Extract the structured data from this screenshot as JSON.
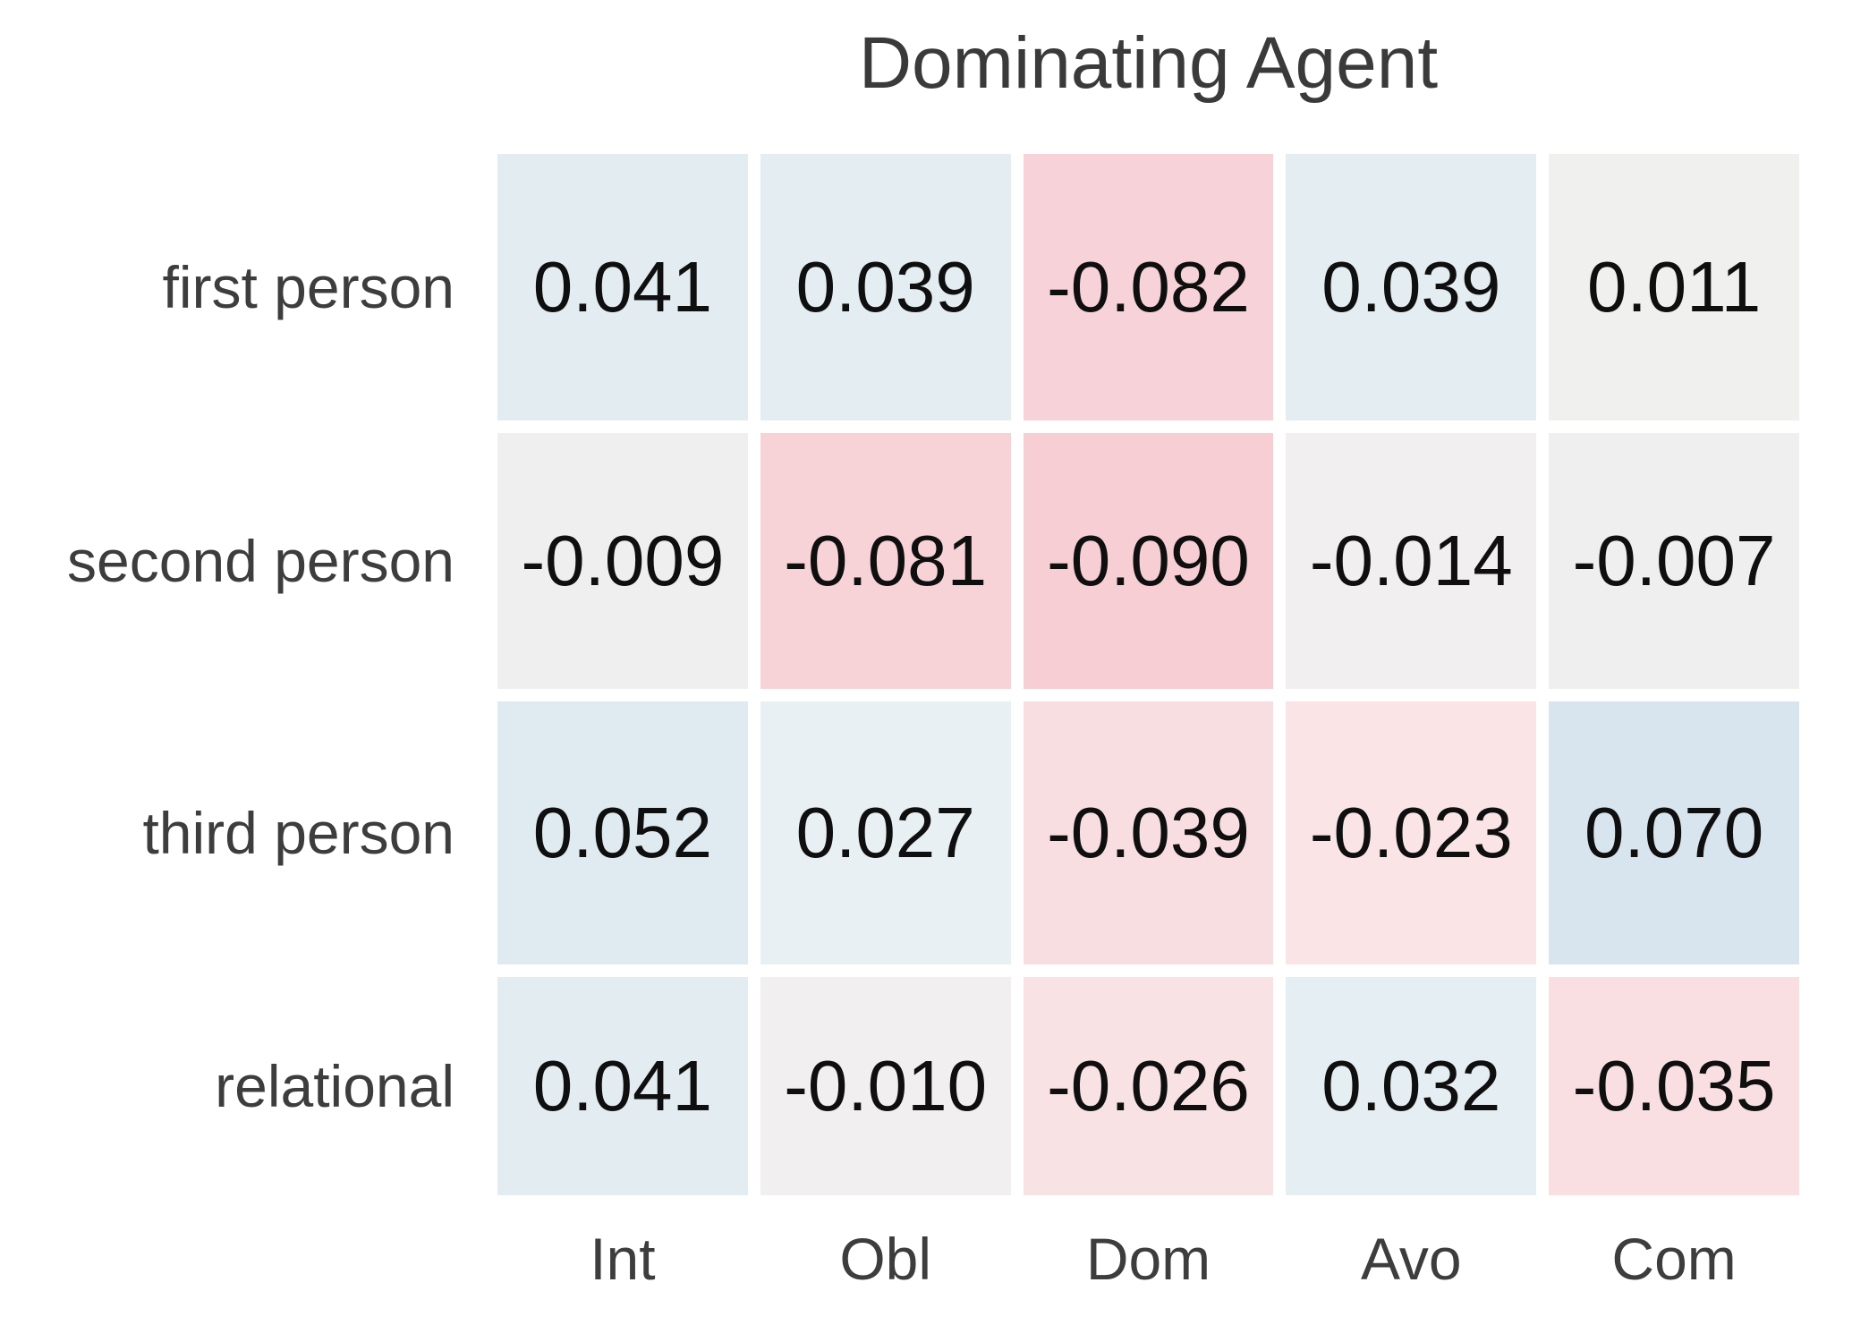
{
  "title": "Dominating Agent",
  "chart_data": {
    "type": "heatmap",
    "title": "Dominating Agent",
    "rows": [
      "first person",
      "second person",
      "third person",
      "relational"
    ],
    "columns": [
      "Int",
      "Obl",
      "Dom",
      "Avo",
      "Com"
    ],
    "values": [
      [
        0.041,
        0.039,
        -0.082,
        0.039,
        0.011
      ],
      [
        -0.009,
        -0.081,
        -0.09,
        -0.014,
        -0.007
      ],
      [
        0.052,
        0.027,
        -0.039,
        -0.023,
        0.07
      ],
      [
        0.041,
        -0.01,
        -0.026,
        0.032,
        -0.035
      ]
    ],
    "value_decimals": 3,
    "cell_colors": [
      [
        "#e2ecf1",
        "#e4edf2",
        "#f7d2d8",
        "#e4edf2",
        "#f0f0ef"
      ],
      [
        "#f0efef",
        "#f7d2d7",
        "#f6ced4",
        "#f1efef",
        "#f0efef"
      ],
      [
        "#dfebf1",
        "#e8f0f4",
        "#f9dee1",
        "#fae4e6",
        "#d9e5ee"
      ],
      [
        "#e2ecf1",
        "#f1efef",
        "#f9e2e4",
        "#e5eef3",
        "#f9dfe2"
      ]
    ],
    "colormap": {
      "scheme": "diverging-red-blue",
      "positive_color": "#d9e5ee",
      "negative_color": "#f6ced4",
      "center_color": "#f1f0f0",
      "center_value": 0
    },
    "value_text_color": "#0f0f0f",
    "label_color": "#3d3d3d",
    "title_color": "#3a3a3a",
    "grid_gap_color": "#ffffff",
    "legend": "none",
    "grid": "off"
  }
}
